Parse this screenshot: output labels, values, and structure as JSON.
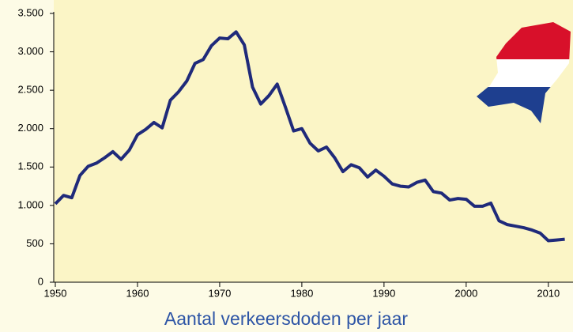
{
  "chart_data": {
    "type": "line",
    "title": "Aantal verkeersdoden per jaar",
    "x": [
      1950,
      1951,
      1952,
      1953,
      1954,
      1955,
      1956,
      1957,
      1958,
      1959,
      1960,
      1961,
      1962,
      1963,
      1964,
      1965,
      1966,
      1967,
      1968,
      1969,
      1970,
      1971,
      1972,
      1973,
      1974,
      1975,
      1976,
      1977,
      1978,
      1979,
      1980,
      1981,
      1982,
      1983,
      1984,
      1985,
      1986,
      1987,
      1988,
      1989,
      1990,
      1991,
      1992,
      1993,
      1994,
      1995,
      1996,
      1997,
      1998,
      1999,
      2000,
      2001,
      2002,
      2003,
      2004,
      2005,
      2006,
      2007,
      2008,
      2009,
      2010,
      2011,
      2012
    ],
    "series": [
      {
        "name": "Verkeersdoden",
        "color": "#1f2a7a",
        "values": [
          1020,
          1130,
          1100,
          1390,
          1510,
          1550,
          1620,
          1700,
          1600,
          1720,
          1920,
          1990,
          2080,
          2010,
          2370,
          2480,
          2620,
          2850,
          2900,
          3080,
          3180,
          3170,
          3260,
          3090,
          2540,
          2320,
          2430,
          2580,
          2280,
          1970,
          2000,
          1810,
          1710,
          1760,
          1620,
          1440,
          1530,
          1490,
          1370,
          1460,
          1380,
          1280,
          1250,
          1240,
          1300,
          1330,
          1180,
          1160,
          1070,
          1090,
          1080,
          990,
          990,
          1030,
          800,
          750,
          730,
          710,
          680,
          640,
          540,
          550,
          560
        ]
      }
    ],
    "xlim": [
      1950,
      2013
    ],
    "xticks": [
      1950,
      1960,
      1970,
      1980,
      1990,
      2000,
      2010
    ],
    "ylim": [
      0,
      3500
    ],
    "yticks": [
      0,
      500,
      {
        "value": 1000,
        "label": "1.000"
      },
      {
        "value": 1500,
        "label": "1.500"
      },
      {
        "value": 2000,
        "label": "2.000"
      },
      {
        "value": 2500,
        "label": "2.500"
      },
      {
        "value": 3000,
        "label": "3.000"
      },
      {
        "value": 3500,
        "label": "3.500"
      }
    ]
  }
}
